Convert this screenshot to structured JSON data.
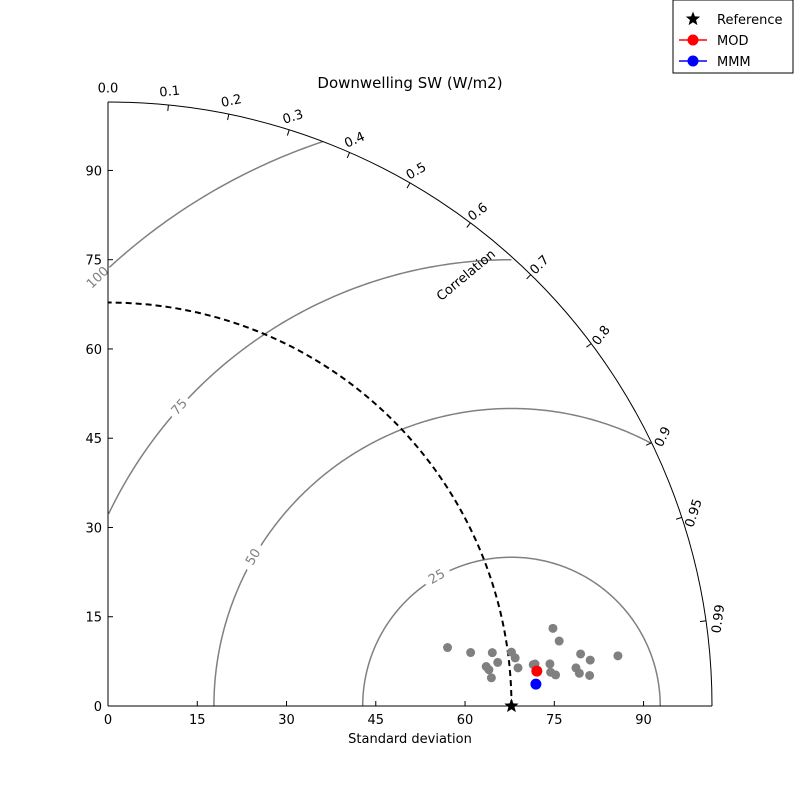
{
  "chart_data": {
    "type": "taylor-diagram",
    "title": "Downwelling SW (W/m2)",
    "xlabel": "Standard deviation",
    "angular_label": "Correlation",
    "std_range": [
      0,
      101.5
    ],
    "std_ticks": [
      0,
      15,
      30,
      45,
      60,
      75,
      90
    ],
    "std_tick_labels": [
      "0",
      "15",
      "30",
      "45",
      "60",
      "75",
      "90"
    ],
    "correlation_ticks": [
      0.0,
      0.1,
      0.2,
      0.3,
      0.4,
      0.5,
      0.6,
      0.7,
      0.8,
      0.9,
      0.95,
      0.99
    ],
    "correlation_tick_labels": [
      "0.0",
      "0.1",
      "0.2",
      "0.3",
      "0.4",
      "0.5",
      "0.6",
      "0.7",
      "0.8",
      "0.9",
      "0.95",
      "0.99"
    ],
    "rms_contours": [
      25,
      50,
      75,
      100
    ],
    "rms_contour_labels": [
      "25",
      "50",
      "75",
      "100"
    ],
    "reference_std": 67.8,
    "reference": {
      "name": "Reference",
      "std": 67.8,
      "correlation": 1.0
    },
    "mod": {
      "name": "MOD",
      "std": 72.3,
      "correlation": 0.9967
    },
    "mmm": {
      "name": "MMM",
      "std": 72.0,
      "correlation": 0.9987
    },
    "members": [
      {
        "std": 57.9,
        "correlation": 0.9855
      },
      {
        "std": 61.6,
        "correlation": 0.9893
      },
      {
        "std": 63.9,
        "correlation": 0.9946
      },
      {
        "std": 64.3,
        "correlation": 0.9955
      },
      {
        "std": 64.6,
        "correlation": 0.9973
      },
      {
        "std": 65.2,
        "correlation": 0.9905
      },
      {
        "std": 65.9,
        "correlation": 0.9938
      },
      {
        "std": 68.4,
        "correlation": 0.9912
      },
      {
        "std": 68.9,
        "correlation": 0.9931
      },
      {
        "std": 69.2,
        "correlation": 0.9957
      },
      {
        "std": 71.8,
        "correlation": 0.9953
      },
      {
        "std": 72.1,
        "correlation": 0.9952
      },
      {
        "std": 74.6,
        "correlation": 0.9955
      },
      {
        "std": 74.6,
        "correlation": 0.9971
      },
      {
        "std": 75.4,
        "correlation": 0.9976
      },
      {
        "std": 75.9,
        "correlation": 0.9851
      },
      {
        "std": 76.6,
        "correlation": 0.9898
      },
      {
        "std": 78.9,
        "correlation": 0.9967
      },
      {
        "std": 79.4,
        "correlation": 0.9976
      },
      {
        "std": 79.9,
        "correlation": 0.994
      },
      {
        "std": 81.1,
        "correlation": 0.998
      },
      {
        "std": 81.4,
        "correlation": 0.9955
      },
      {
        "std": 86.1,
        "correlation": 0.9952
      }
    ],
    "legend": {
      "placement": "top-right",
      "entries": [
        {
          "label": "Reference",
          "marker": "star",
          "color": "#000000"
        },
        {
          "label": "MOD",
          "marker": "circle-line",
          "color": "#ff0000"
        },
        {
          "label": "MMM",
          "marker": "circle-line",
          "color": "#0000ff"
        }
      ]
    },
    "colors": {
      "axis": "#000000",
      "rms_contour": "#808080",
      "members": "#808080",
      "reference_arc": "#000000"
    }
  }
}
